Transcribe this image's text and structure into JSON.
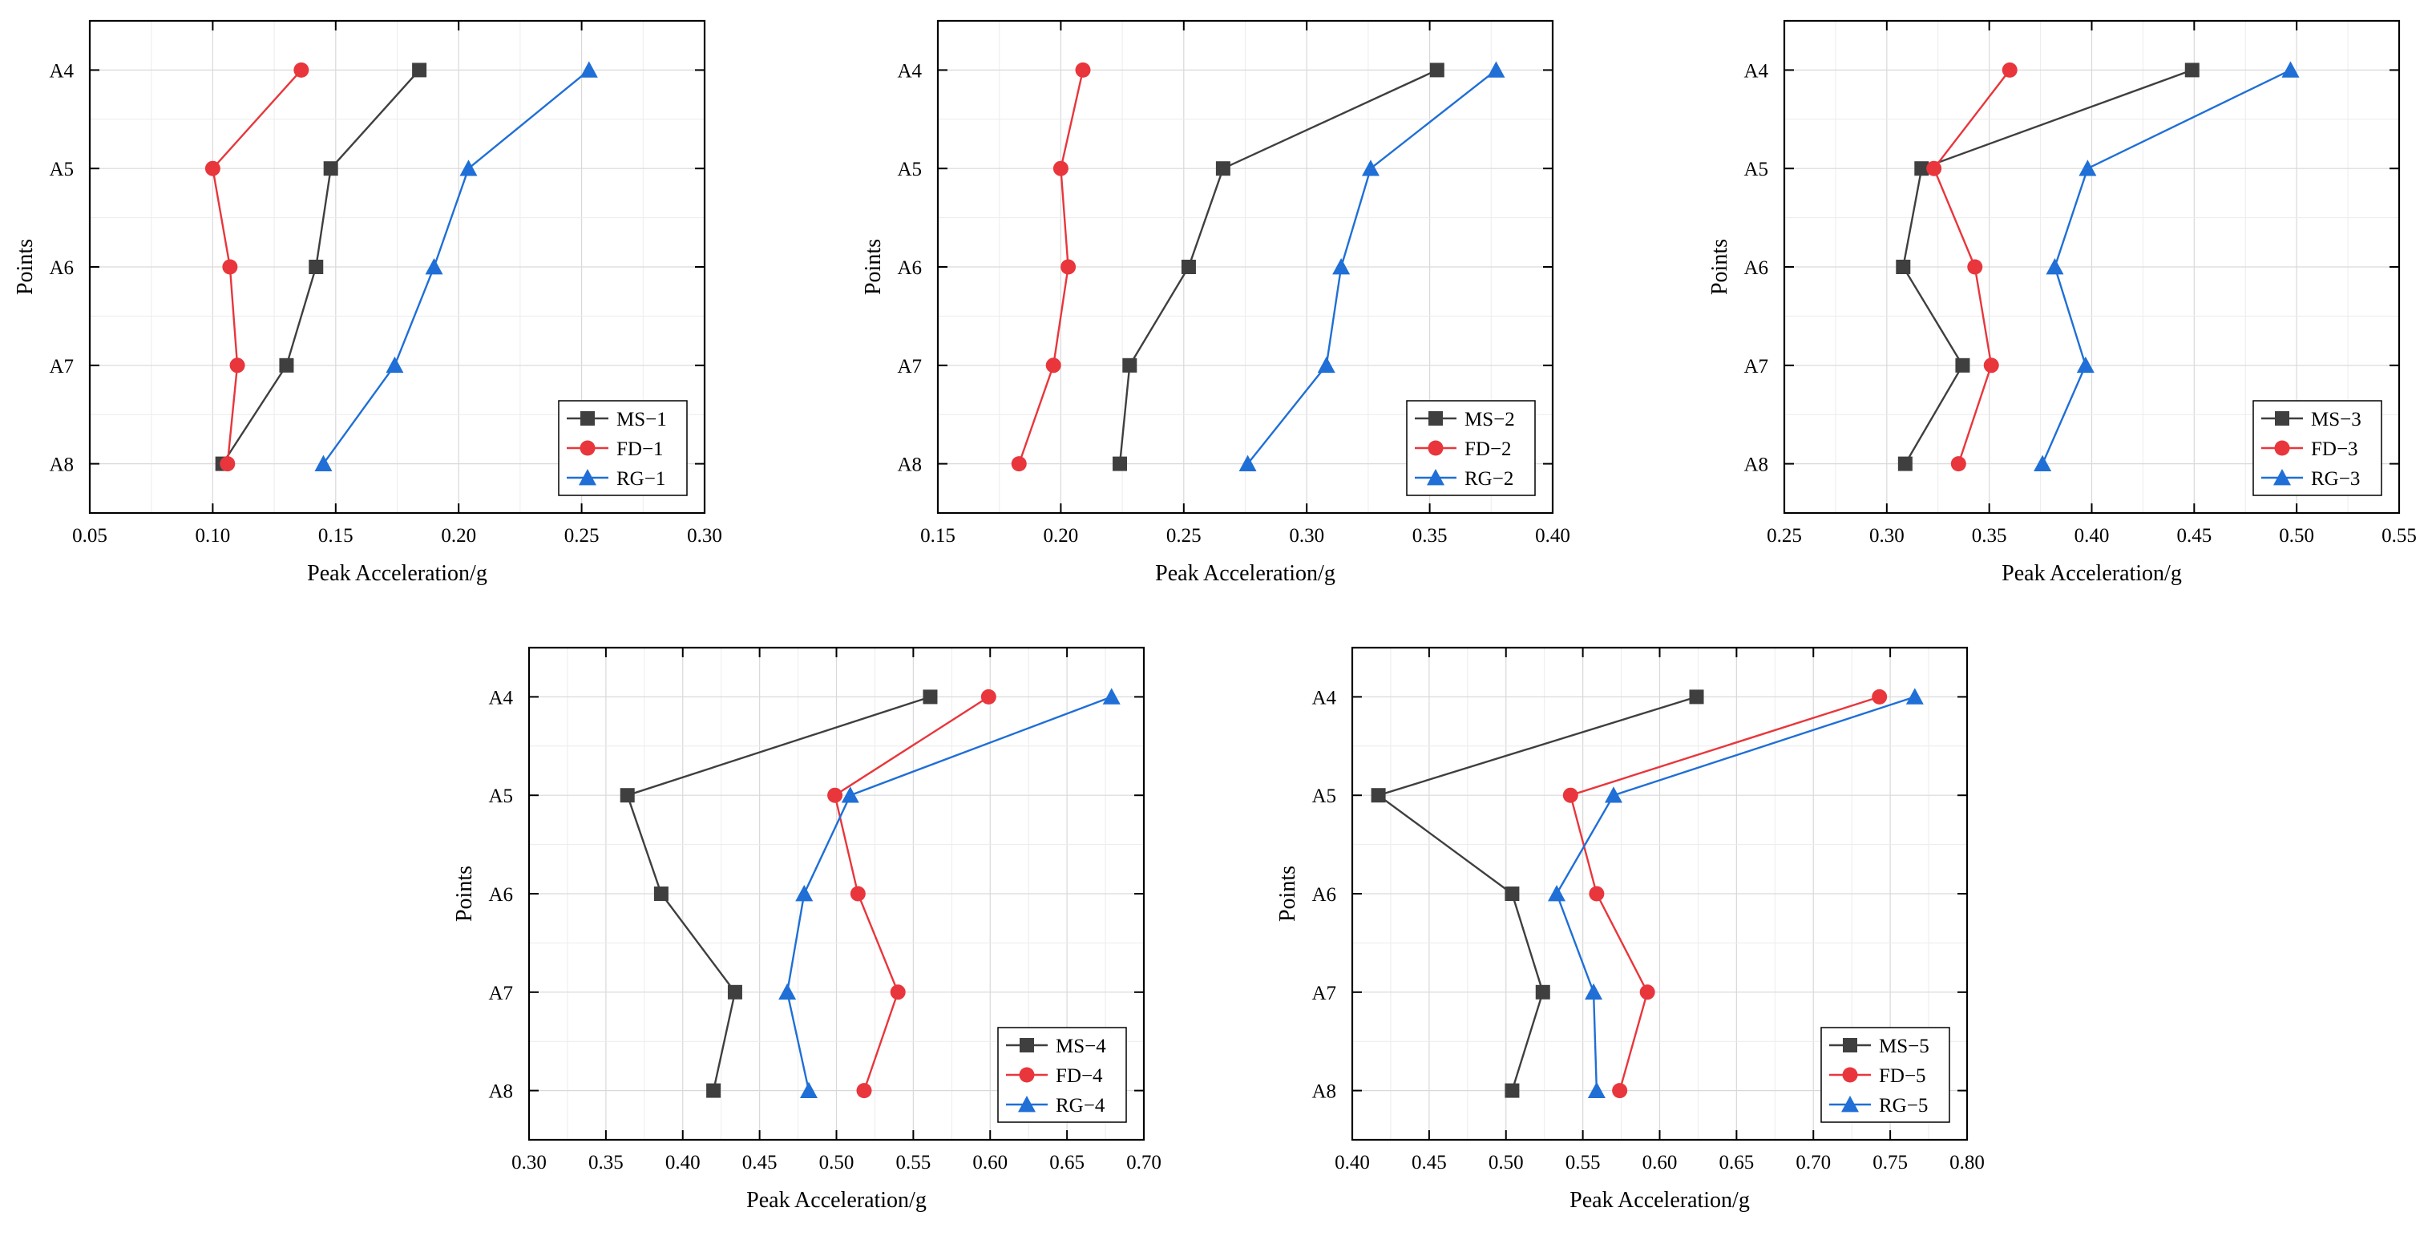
{
  "colors": {
    "MS": "#3f3f3f",
    "FD": "#e8363c",
    "RG": "#1f6fd6"
  },
  "chart_data": [
    {
      "type": "line",
      "xlabel": "Peak Acceleration/g",
      "ylabel": "Points",
      "xlim": [
        0.05,
        0.3
      ],
      "xticks": [
        "0.05",
        "0.10",
        "0.15",
        "0.20",
        "0.25",
        "0.30"
      ],
      "categories": [
        "A4",
        "A5",
        "A6",
        "A7",
        "A8"
      ],
      "legend_position": "bottom-right",
      "series": [
        {
          "name": "MS−1",
          "key": "MS",
          "marker": "square",
          "values": [
            0.184,
            0.148,
            0.142,
            0.13,
            0.104
          ]
        },
        {
          "name": "FD−1",
          "key": "FD",
          "marker": "circle",
          "values": [
            0.136,
            0.1,
            0.107,
            0.11,
            0.106
          ]
        },
        {
          "name": "RG−1",
          "key": "RG",
          "marker": "triangle",
          "values": [
            0.253,
            0.204,
            0.19,
            0.174,
            0.145
          ]
        }
      ]
    },
    {
      "type": "line",
      "xlabel": "Peak Acceleration/g",
      "ylabel": "Points",
      "xlim": [
        0.15,
        0.4
      ],
      "xticks": [
        "0.15",
        "0.20",
        "0.25",
        "0.30",
        "0.35",
        "0.40"
      ],
      "categories": [
        "A4",
        "A5",
        "A6",
        "A7",
        "A8"
      ],
      "legend_position": "bottom-right",
      "series": [
        {
          "name": "MS−2",
          "key": "MS",
          "marker": "square",
          "values": [
            0.353,
            0.266,
            0.252,
            0.228,
            0.224
          ]
        },
        {
          "name": "FD−2",
          "key": "FD",
          "marker": "circle",
          "values": [
            0.209,
            0.2,
            0.203,
            0.197,
            0.183
          ]
        },
        {
          "name": "RG−2",
          "key": "RG",
          "marker": "triangle",
          "values": [
            0.377,
            0.326,
            0.314,
            0.308,
            0.276
          ]
        }
      ]
    },
    {
      "type": "line",
      "xlabel": "Peak Acceleration/g",
      "ylabel": "Points",
      "xlim": [
        0.25,
        0.55
      ],
      "xticks": [
        "0.25",
        "0.30",
        "0.35",
        "0.40",
        "0.45",
        "0.50",
        "0.55"
      ],
      "categories": [
        "A4",
        "A5",
        "A6",
        "A7",
        "A8"
      ],
      "legend_position": "bottom-right",
      "series": [
        {
          "name": "MS−3",
          "key": "MS",
          "marker": "square",
          "values": [
            0.449,
            0.317,
            0.308,
            0.337,
            0.309
          ]
        },
        {
          "name": "FD−3",
          "key": "FD",
          "marker": "circle",
          "values": [
            0.36,
            0.323,
            0.343,
            0.351,
            0.335
          ]
        },
        {
          "name": "RG−3",
          "key": "RG",
          "marker": "triangle",
          "values": [
            0.497,
            0.398,
            0.382,
            0.397,
            0.376
          ]
        }
      ]
    },
    {
      "type": "line",
      "xlabel": "Peak Acceleration/g",
      "ylabel": "Points",
      "xlim": [
        0.3,
        0.7
      ],
      "xticks": [
        "0.30",
        "0.35",
        "0.40",
        "0.45",
        "0.50",
        "0.55",
        "0.60",
        "0.65",
        "0.70"
      ],
      "categories": [
        "A4",
        "A5",
        "A6",
        "A7",
        "A8"
      ],
      "legend_position": "bottom-right",
      "series": [
        {
          "name": "MS−4",
          "key": "MS",
          "marker": "square",
          "values": [
            0.561,
            0.364,
            0.386,
            0.434,
            0.42
          ]
        },
        {
          "name": "FD−4",
          "key": "FD",
          "marker": "circle",
          "values": [
            0.599,
            0.499,
            0.514,
            0.54,
            0.518
          ]
        },
        {
          "name": "RG−4",
          "key": "RG",
          "marker": "triangle",
          "values": [
            0.679,
            0.509,
            0.479,
            0.468,
            0.482
          ]
        }
      ]
    },
    {
      "type": "line",
      "xlabel": "Peak Acceleration/g",
      "ylabel": "Points",
      "xlim": [
        0.4,
        0.8
      ],
      "xticks": [
        "0.40",
        "0.45",
        "0.50",
        "0.55",
        "0.60",
        "0.65",
        "0.70",
        "0.75",
        "0.80"
      ],
      "categories": [
        "A4",
        "A5",
        "A6",
        "A7",
        "A8"
      ],
      "legend_position": "bottom-right",
      "series": [
        {
          "name": "MS−5",
          "key": "MS",
          "marker": "square",
          "values": [
            0.624,
            0.417,
            0.504,
            0.524,
            0.504
          ]
        },
        {
          "name": "FD−5",
          "key": "FD",
          "marker": "circle",
          "values": [
            0.743,
            0.542,
            0.559,
            0.592,
            0.574
          ]
        },
        {
          "name": "RG−5",
          "key": "RG",
          "marker": "triangle",
          "values": [
            0.766,
            0.57,
            0.533,
            0.557,
            0.559
          ]
        }
      ]
    }
  ]
}
